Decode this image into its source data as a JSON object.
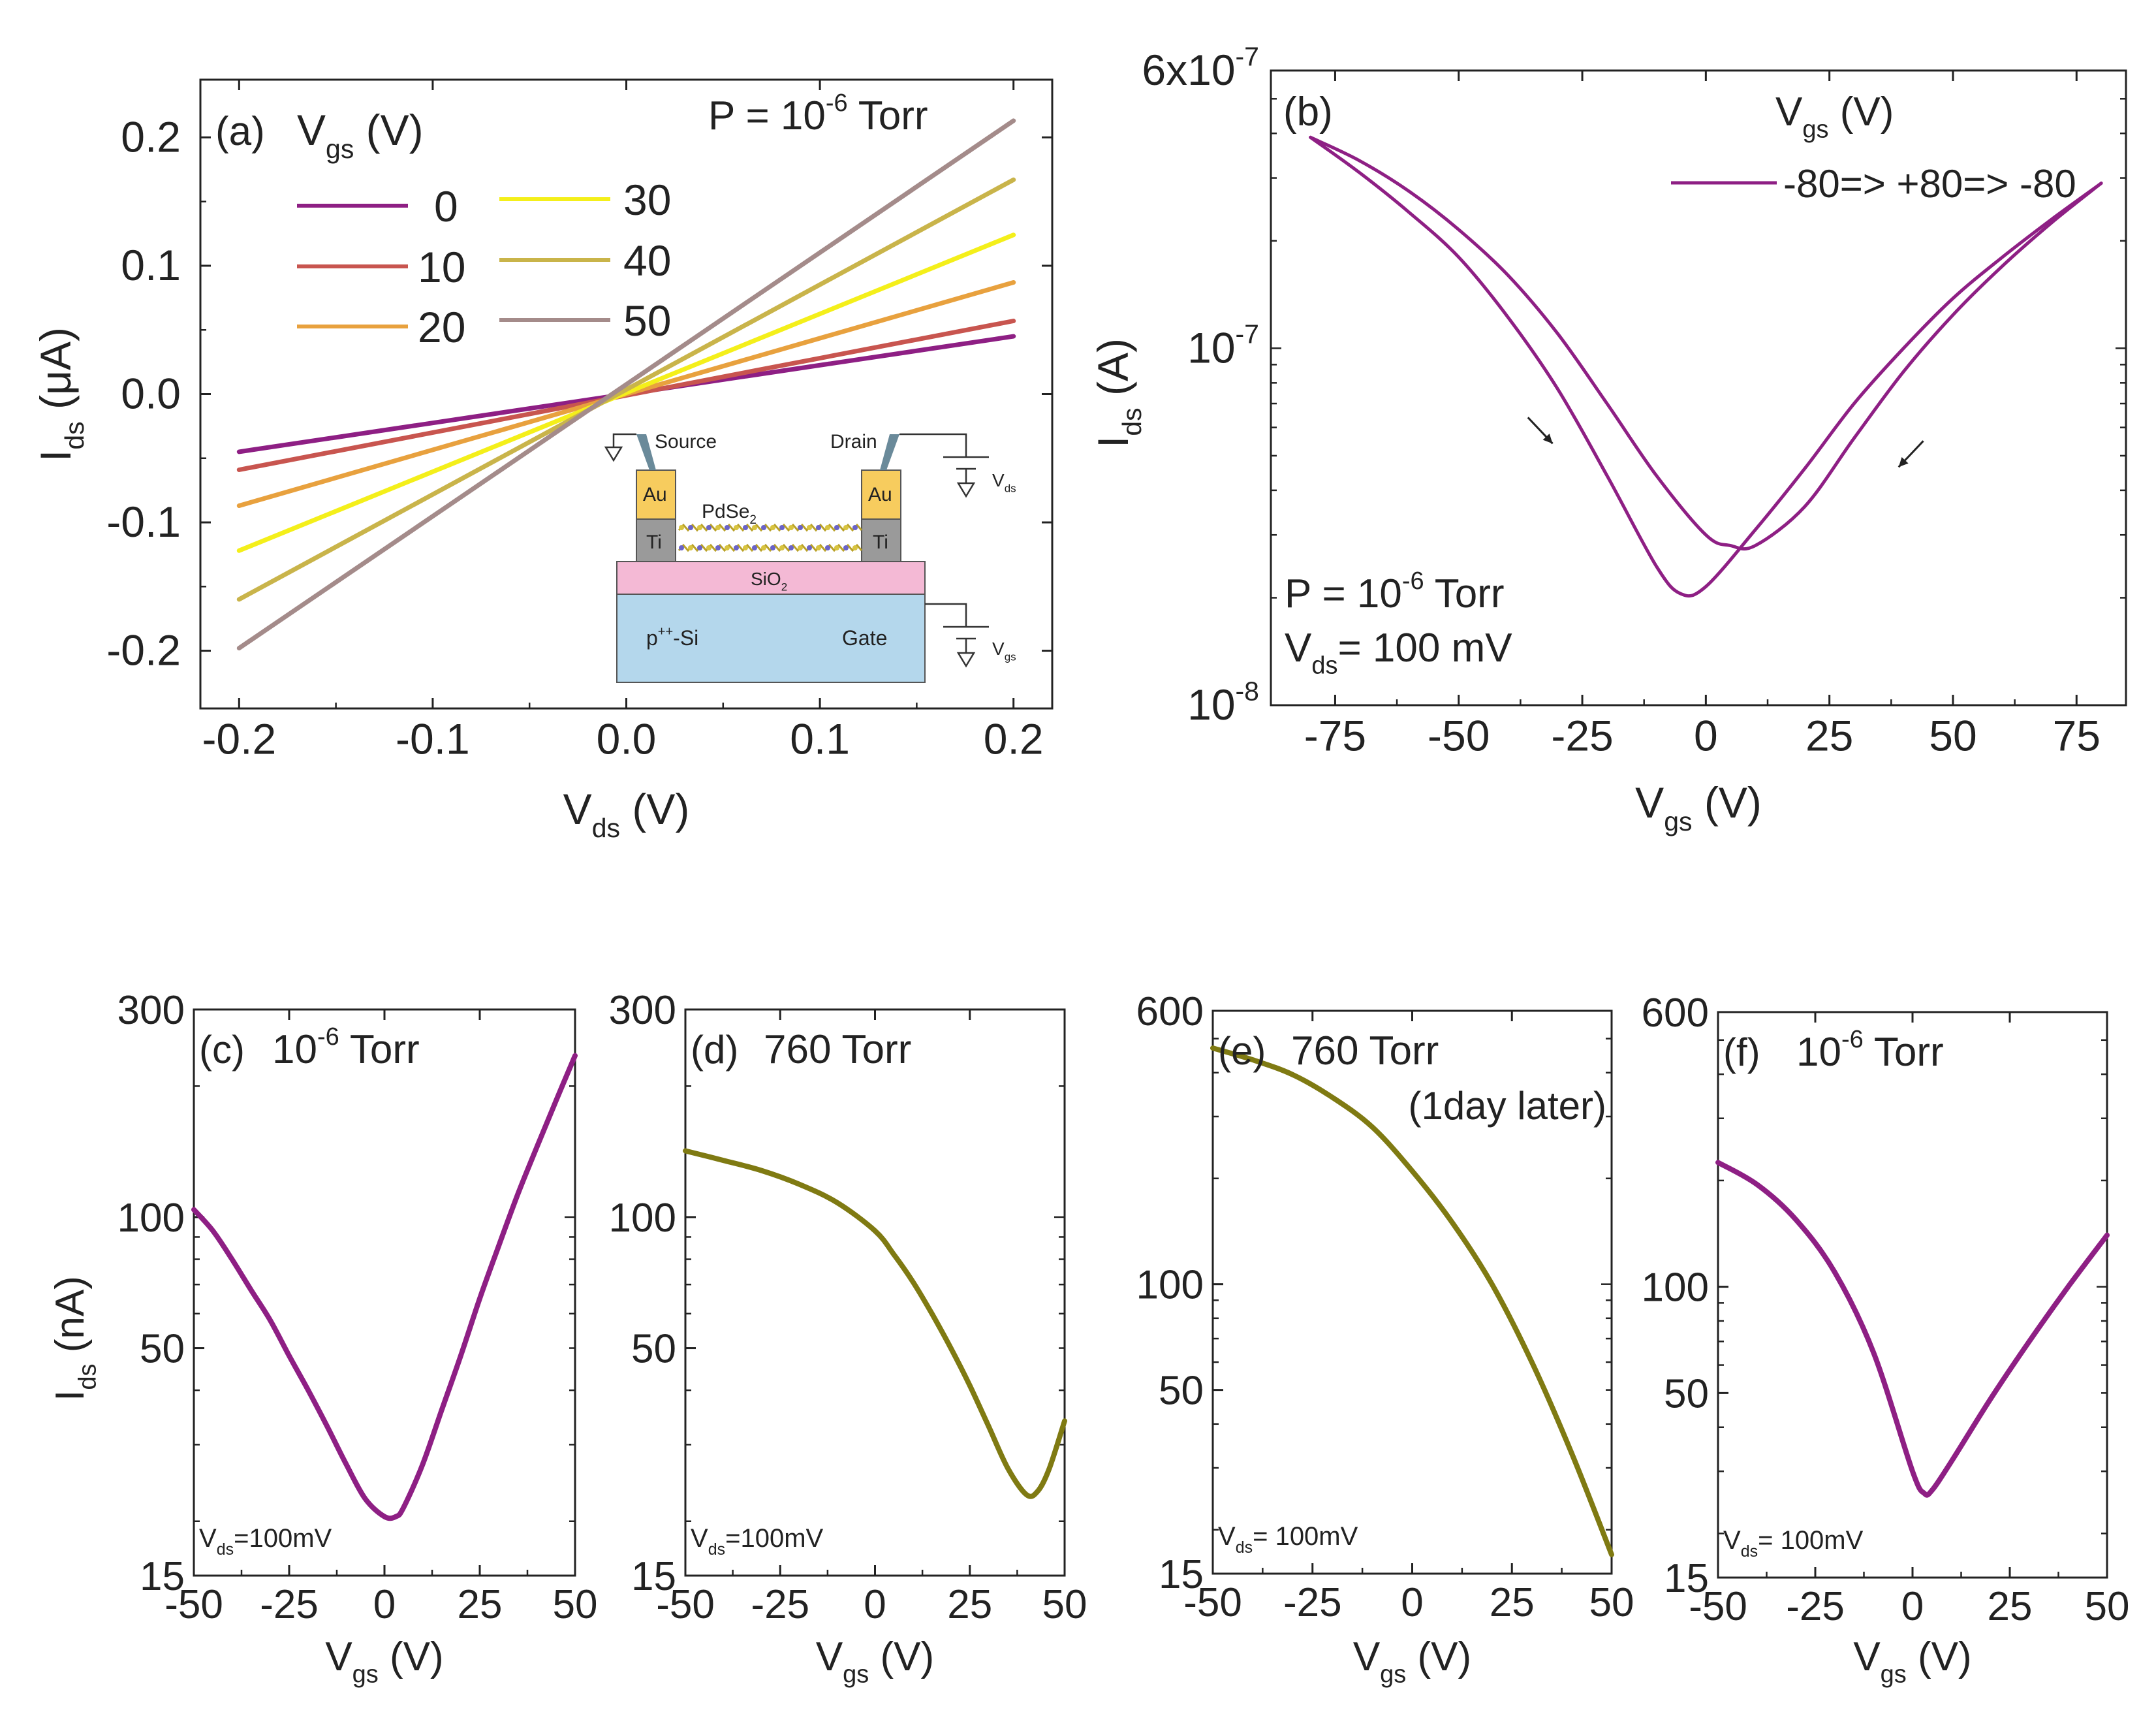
{
  "colors": {
    "magenta": "#8e1f84",
    "olive": "#7f7a12",
    "axis": "#222222",
    "vgs": [
      "#8e1f84",
      "#c8554f",
      "#e8a13e",
      "#f4ef1a",
      "#c9b44a",
      "#a48b8a"
    ],
    "au": "#f7cc5e",
    "ti": "#9a9a9a",
    "sio2": "#f4b9d5",
    "si": "#b4d7ec",
    "probe": "#6a8a9a"
  },
  "chart_data": [
    {
      "id": "a",
      "type": "line",
      "panel_label": "(a)",
      "legend_title": "V",
      "legend_title_sub": "gs",
      "legend_title_unit": " (V)",
      "annotation": {
        "prefix": "P = 10",
        "sup": "-6",
        "suffix": " Torr"
      },
      "xlabel": {
        "main": "V",
        "sub": "ds",
        "unit": " (V)"
      },
      "ylabel": {
        "main": "I",
        "sub": "ds",
        "unit": " (μA)"
      },
      "xlim": [
        -0.22,
        0.22
      ],
      "ylim": [
        -0.245,
        0.245
      ],
      "xticks": [
        -0.2,
        -0.1,
        0.0,
        0.1,
        0.2
      ],
      "xtick_labels": [
        "-0.2",
        "-0.1",
        "0.0",
        "0.1",
        "0.2"
      ],
      "yticks": [
        -0.2,
        -0.1,
        0.0,
        0.1,
        0.2
      ],
      "ytick_labels": [
        "-0.2",
        "-0.1",
        "0.0",
        "0.1",
        "0.2"
      ],
      "x": [
        -0.2,
        0.2
      ],
      "series": [
        {
          "name": "0",
          "values": [
            -0.045,
            0.045
          ]
        },
        {
          "name": "10",
          "values": [
            -0.059,
            0.057
          ]
        },
        {
          "name": "20",
          "values": [
            -0.087,
            0.087
          ]
        },
        {
          "name": "30",
          "values": [
            -0.122,
            0.124
          ]
        },
        {
          "name": "40",
          "values": [
            -0.16,
            0.167
          ]
        },
        {
          "name": "50",
          "values": [
            -0.198,
            0.213
          ]
        }
      ],
      "inset": {
        "source": "Source",
        "drain": "Drain",
        "au_left": "Au",
        "au_right": "Au",
        "ti_left": "Ti",
        "ti_right": "Ti",
        "channel": "PdSe",
        "channel_sub": "2",
        "oxide": "SiO",
        "oxide_sub": "2",
        "substrate": "p",
        "substrate_sup": "++",
        "substrate_suffix": "-Si",
        "gate": "Gate",
        "vds": "V",
        "vds_sub": "ds",
        "vgs": "V",
        "vgs_sub": "gs"
      }
    },
    {
      "id": "b",
      "type": "line",
      "yscale": "log",
      "panel_label": "(b)",
      "legend_title": "V",
      "legend_title_sub": "gs",
      "legend_title_unit": " (V)",
      "legend_entry": "-80=> +80=> -80",
      "annotation_p": {
        "prefix": "P = 10",
        "sup": "-6",
        "suffix": " Torr"
      },
      "annotation_v": {
        "main": "V",
        "sub": "ds",
        "suffix": "= 100 mV"
      },
      "xlabel": {
        "main": "V",
        "sub": "gs",
        "unit": " (V)"
      },
      "ylabel": {
        "main": "I",
        "sub": "ds",
        "unit": " (A)"
      },
      "xlim": [
        -88,
        85
      ],
      "ylim": [
        1e-08,
        6e-07
      ],
      "xticks": [
        -75,
        -50,
        -25,
        0,
        25,
        50,
        75
      ],
      "xtick_labels": [
        "-75",
        "-50",
        "-25",
        "0",
        "25",
        "50",
        "75"
      ],
      "yticks": [
        1e-08,
        1e-07,
        6e-07
      ],
      "ytick_labels": [
        {
          "base": "10",
          "sup": "-8"
        },
        {
          "base": "10",
          "sup": "-7"
        },
        {
          "base": "6x10",
          "sup": "-7"
        }
      ],
      "forward": {
        "x": [
          -80,
          -70,
          -60,
          -50,
          -40,
          -30,
          -20,
          -10,
          -5,
          0,
          10,
          20,
          30,
          40,
          50,
          60,
          70,
          80
        ],
        "values": [
          3.9e-07,
          3.1e-07,
          2.4e-07,
          1.8e-07,
          1.22e-07,
          7.7e-08,
          4.4e-08,
          2.45e-08,
          2.05e-08,
          2.15e-08,
          3.1e-08,
          4.6e-08,
          7e-08,
          1e-07,
          1.38e-07,
          1.8e-07,
          2.3e-07,
          2.9e-07
        ]
      },
      "reverse": {
        "x": [
          80,
          70,
          60,
          50,
          40,
          30,
          20,
          10,
          5,
          0,
          -10,
          -20,
          -30,
          -40,
          -50,
          -60,
          -70,
          -80
        ],
        "values": [
          2.9e-07,
          2.25e-07,
          1.7e-07,
          1.24e-07,
          8.6e-08,
          5.6e-08,
          3.6e-08,
          2.8e-08,
          2.8e-08,
          3e-08,
          4.4e-08,
          7e-08,
          1.1e-07,
          1.6e-07,
          2.15e-07,
          2.75e-07,
          3.35e-07,
          3.9e-07
        ]
      },
      "arrows": [
        {
          "x": -36,
          "y": 6.4e-08,
          "dx": 5,
          "direction": "down-right"
        },
        {
          "x": 44,
          "y": 5.5e-08,
          "dx": -5,
          "direction": "down-left"
        }
      ]
    },
    {
      "id": "c",
      "type": "line",
      "yscale": "log",
      "panel_label": "(c)",
      "title": {
        "prefix": "10",
        "sup": "-6",
        "suffix": " Torr"
      },
      "vds_note": {
        "main": "V",
        "sub": "ds",
        "suffix": "=100mV"
      },
      "xlabel": {
        "main": "V",
        "sub": "gs",
        "unit": " (V)"
      },
      "ylabel": {
        "main": "I",
        "sub": "ds",
        "unit": " (nA)"
      },
      "xlim": [
        -50,
        50
      ],
      "ylim": [
        15,
        300
      ],
      "xticks": [
        -50,
        -25,
        0,
        25,
        50
      ],
      "xtick_labels": [
        "-50",
        "-25",
        "0",
        "25",
        "50"
      ],
      "yticks": [
        15,
        50,
        100,
        300
      ],
      "ytick_labels": [
        "15",
        "50",
        "100",
        "300"
      ],
      "color": "magenta",
      "x": [
        -50,
        -45,
        -40,
        -35,
        -30,
        -25,
        -20,
        -15,
        -10,
        -5,
        0,
        3,
        5,
        10,
        15,
        20,
        25,
        30,
        35,
        40,
        45,
        50
      ],
      "values": [
        104,
        93,
        80,
        68,
        58,
        48,
        40,
        33,
        27,
        22.5,
        20.5,
        20.5,
        21.5,
        27,
        36,
        48,
        65,
        86,
        113,
        145,
        185,
        235
      ]
    },
    {
      "id": "d",
      "type": "line",
      "yscale": "log",
      "panel_label": "(d)",
      "title": {
        "prefix": "760 Torr",
        "sup": "",
        "suffix": ""
      },
      "vds_note": {
        "main": "V",
        "sub": "ds",
        "suffix": "=100mV"
      },
      "xlabel": {
        "main": "V",
        "sub": "gs",
        "unit": " (V)"
      },
      "ylabel": {
        "main": "",
        "sub": "",
        "unit": ""
      },
      "xlim": [
        -50,
        50
      ],
      "ylim": [
        15,
        300
      ],
      "xticks": [
        -50,
        -25,
        0,
        25,
        50
      ],
      "xtick_labels": [
        "-50",
        "-25",
        "0",
        "25",
        "50"
      ],
      "yticks": [
        15,
        50,
        100,
        300
      ],
      "ytick_labels": [
        "15",
        "50",
        "100",
        "300"
      ],
      "color": "olive",
      "x": [
        -50,
        -40,
        -30,
        -20,
        -10,
        0,
        5,
        10,
        15,
        20,
        25,
        30,
        35,
        40,
        43,
        46,
        50
      ],
      "values": [
        142,
        135,
        128,
        119,
        108,
        93,
        82,
        71,
        60,
        50,
        41,
        33,
        26.5,
        23,
        23.5,
        26.5,
        34
      ]
    },
    {
      "id": "e",
      "type": "line",
      "yscale": "log",
      "panel_label": "(e)",
      "title": {
        "prefix": "760 Torr",
        "sup": "",
        "suffix": ""
      },
      "title2": "(1day later)",
      "vds_note": {
        "main": "V",
        "sub": "ds",
        "suffix": "= 100mV"
      },
      "xlabel": {
        "main": "V",
        "sub": "gs",
        "unit": " (V)"
      },
      "ylabel": {
        "main": "",
        "sub": "",
        "unit": ""
      },
      "xlim": [
        -50,
        50
      ],
      "ylim": [
        15,
        600
      ],
      "xticks": [
        -50,
        -25,
        0,
        25,
        50
      ],
      "xtick_labels": [
        "-50",
        "-25",
        "0",
        "25",
        "50"
      ],
      "yticks": [
        15,
        50,
        100,
        600
      ],
      "ytick_labels": [
        "15",
        "50",
        "100",
        "600"
      ],
      "color": "olive",
      "x": [
        -50,
        -40,
        -30,
        -20,
        -10,
        0,
        10,
        20,
        30,
        40,
        50
      ],
      "values": [
        470,
        435,
        395,
        340,
        280,
        210,
        150,
        100,
        60,
        33,
        17
      ]
    },
    {
      "id": "f",
      "type": "line",
      "yscale": "log",
      "panel_label": "(f)",
      "title": {
        "prefix": "10",
        "sup": "-6",
        "suffix": " Torr"
      },
      "vds_note": {
        "main": "V",
        "sub": "ds",
        "suffix": "= 100mV"
      },
      "xlabel": {
        "main": "V",
        "sub": "gs",
        "unit": " (V)"
      },
      "ylabel": {
        "main": "",
        "sub": "",
        "unit": ""
      },
      "xlim": [
        -50,
        50
      ],
      "ylim": [
        15,
        600
      ],
      "xticks": [
        -50,
        -25,
        0,
        25,
        50
      ],
      "xtick_labels": [
        "-50",
        "-25",
        "0",
        "25",
        "50"
      ],
      "yticks": [
        15,
        50,
        100,
        600
      ],
      "ytick_labels": [
        "15",
        "50",
        "100",
        "600"
      ],
      "color": "magenta",
      "x": [
        -50,
        -40,
        -30,
        -20,
        -10,
        0,
        3,
        5,
        10,
        20,
        30,
        40,
        50
      ],
      "values": [
        225,
        195,
        155,
        110,
        65,
        30,
        26,
        26.5,
        32,
        48,
        70,
        100,
        140
      ]
    }
  ]
}
